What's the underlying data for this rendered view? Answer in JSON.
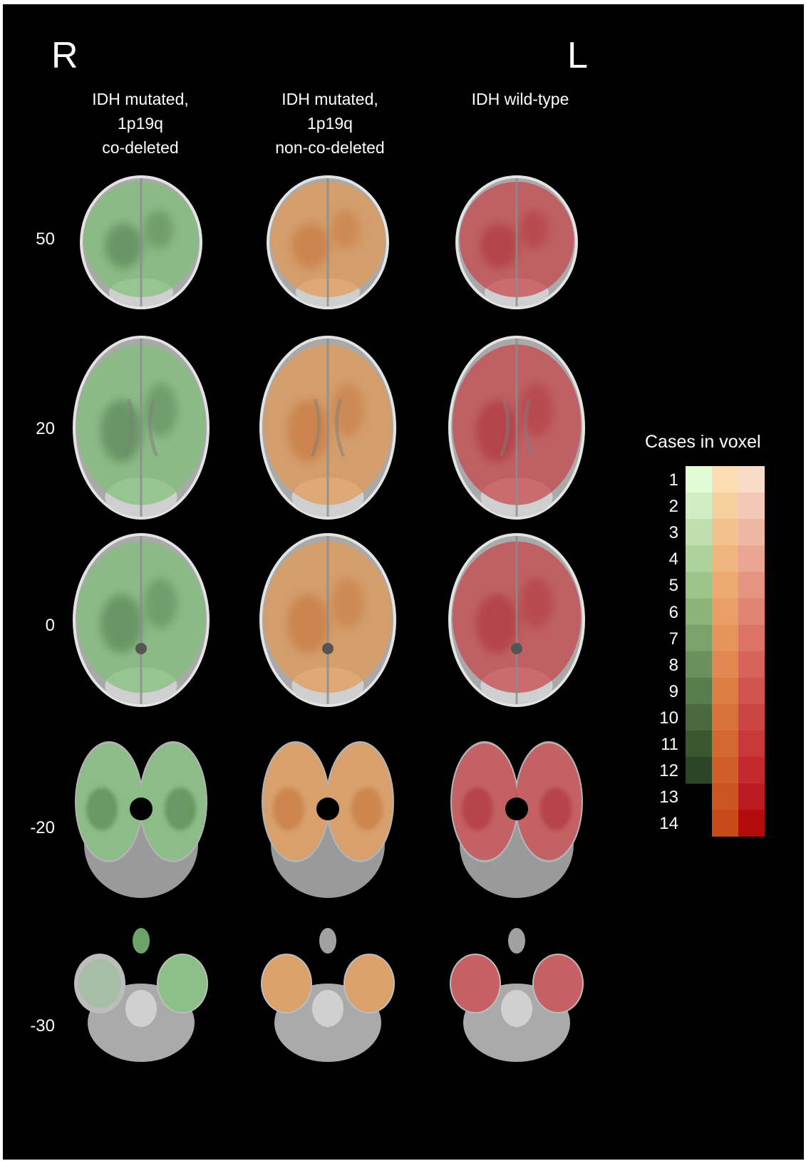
{
  "orientation": {
    "right_label": "R",
    "left_label": "L"
  },
  "columns": [
    {
      "title": "IDH mutated,\n1p19q\nco-deleted",
      "color": "#7fc07a"
    },
    {
      "title": "IDH mutated,\n1p19q\nnon-co-deleted",
      "color": "#e39a55"
    },
    {
      "title": "IDH wild-type",
      "color": "#c8454a"
    }
  ],
  "slices": [
    "50",
    "20",
    "0",
    "-20",
    "-30"
  ],
  "legend": {
    "title": "Cases in voxel",
    "levels": [
      "1",
      "2",
      "3",
      "4",
      "5",
      "6",
      "7",
      "8",
      "9",
      "10",
      "11",
      "12",
      "13",
      "14"
    ],
    "scales": [
      {
        "max_level": 12,
        "colors": [
          "#e2fbd7",
          "#cfeec1",
          "#bfe0ae",
          "#aed29c",
          "#9dc48b",
          "#8db37b",
          "#7ca26c",
          "#6b905c",
          "#5a7d4d",
          "#4a6a3e",
          "#3a5730",
          "#2c4524"
        ]
      },
      {
        "max_level": 14,
        "colors": [
          "#fbdcb3",
          "#f6cf9f",
          "#f2c28e",
          "#efb57f",
          "#ecaa72",
          "#e89e66",
          "#e4935a",
          "#e0884f",
          "#dc7d44",
          "#d8723a",
          "#d36831",
          "#cf5e28",
          "#cb5420",
          "#c74a18"
        ]
      },
      {
        "max_level": 14,
        "colors": [
          "#f9d9c8",
          "#f3c7b5",
          "#eeb6a3",
          "#e9a592",
          "#e59482",
          "#e08473",
          "#db7465",
          "#d66458",
          "#d1554c",
          "#cc4641",
          "#c73836",
          "#c22a2b",
          "#bc1c21",
          "#b30c0c"
        ]
      }
    ]
  }
}
